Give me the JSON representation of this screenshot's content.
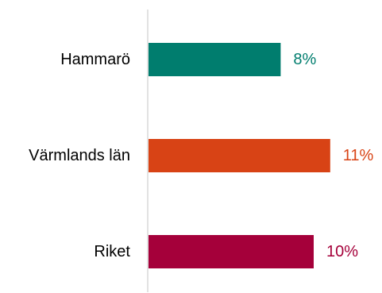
{
  "chart_data": {
    "type": "bar",
    "orientation": "horizontal",
    "categories": [
      "Hammarö",
      "Värmlands län",
      "Riket"
    ],
    "values": [
      8,
      11,
      10
    ],
    "value_labels": [
      "8%",
      "11%",
      "10%"
    ],
    "unit": "%",
    "title": "",
    "xlabel": "",
    "ylabel": "",
    "xlim": [
      0,
      11
    ],
    "grid": false,
    "legend": "none",
    "colors": [
      "#007d6e",
      "#d84315",
      "#a5003a"
    ]
  }
}
